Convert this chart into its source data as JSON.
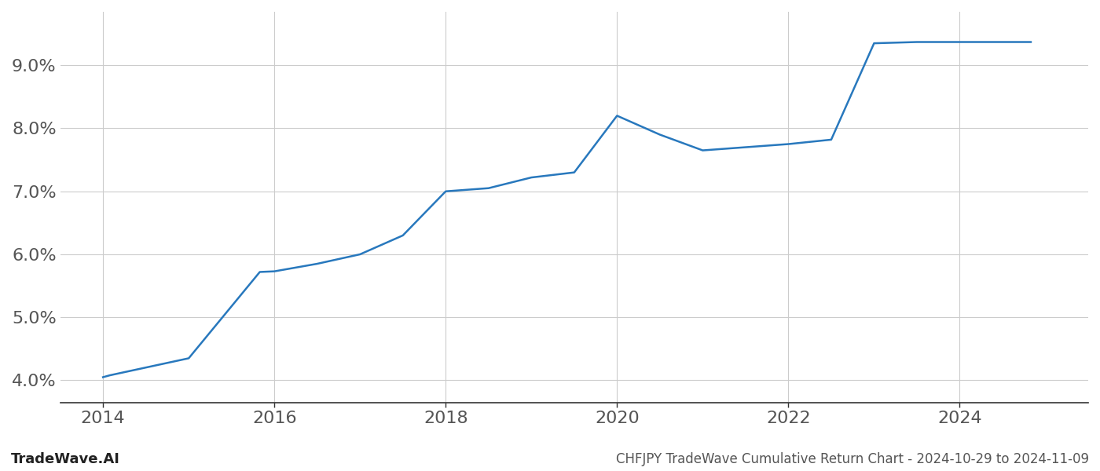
{
  "x_values": [
    2014.0,
    2014.08,
    2015.0,
    2015.83,
    2016.0,
    2016.5,
    2017.0,
    2017.5,
    2018.0,
    2018.5,
    2019.0,
    2019.5,
    2020.0,
    2020.5,
    2021.0,
    2021.5,
    2022.0,
    2022.5,
    2023.0,
    2023.5,
    2024.0,
    2024.83
  ],
  "y_values": [
    4.05,
    4.08,
    4.35,
    5.72,
    5.73,
    5.85,
    6.0,
    6.3,
    7.0,
    7.05,
    7.22,
    7.3,
    8.2,
    7.9,
    7.65,
    7.7,
    7.75,
    7.82,
    9.35,
    9.37,
    9.37,
    9.37
  ],
  "line_color": "#2878bd",
  "line_width": 1.8,
  "title": "CHFJPY TradeWave Cumulative Return Chart - 2024-10-29 to 2024-11-09",
  "title_fontsize": 12,
  "xlim": [
    2013.5,
    2025.5
  ],
  "ylim": [
    3.65,
    9.85
  ],
  "ytick_values": [
    4.0,
    5.0,
    6.0,
    7.0,
    8.0,
    9.0
  ],
  "xtick_values": [
    2014,
    2016,
    2018,
    2020,
    2022,
    2024
  ],
  "tick_fontsize": 16,
  "background_color": "#ffffff",
  "grid_color": "#cccccc",
  "watermark_text": "TradeWave.AI",
  "watermark_fontsize": 13,
  "bottom_text_color": "#555555",
  "axis_color": "#333333"
}
